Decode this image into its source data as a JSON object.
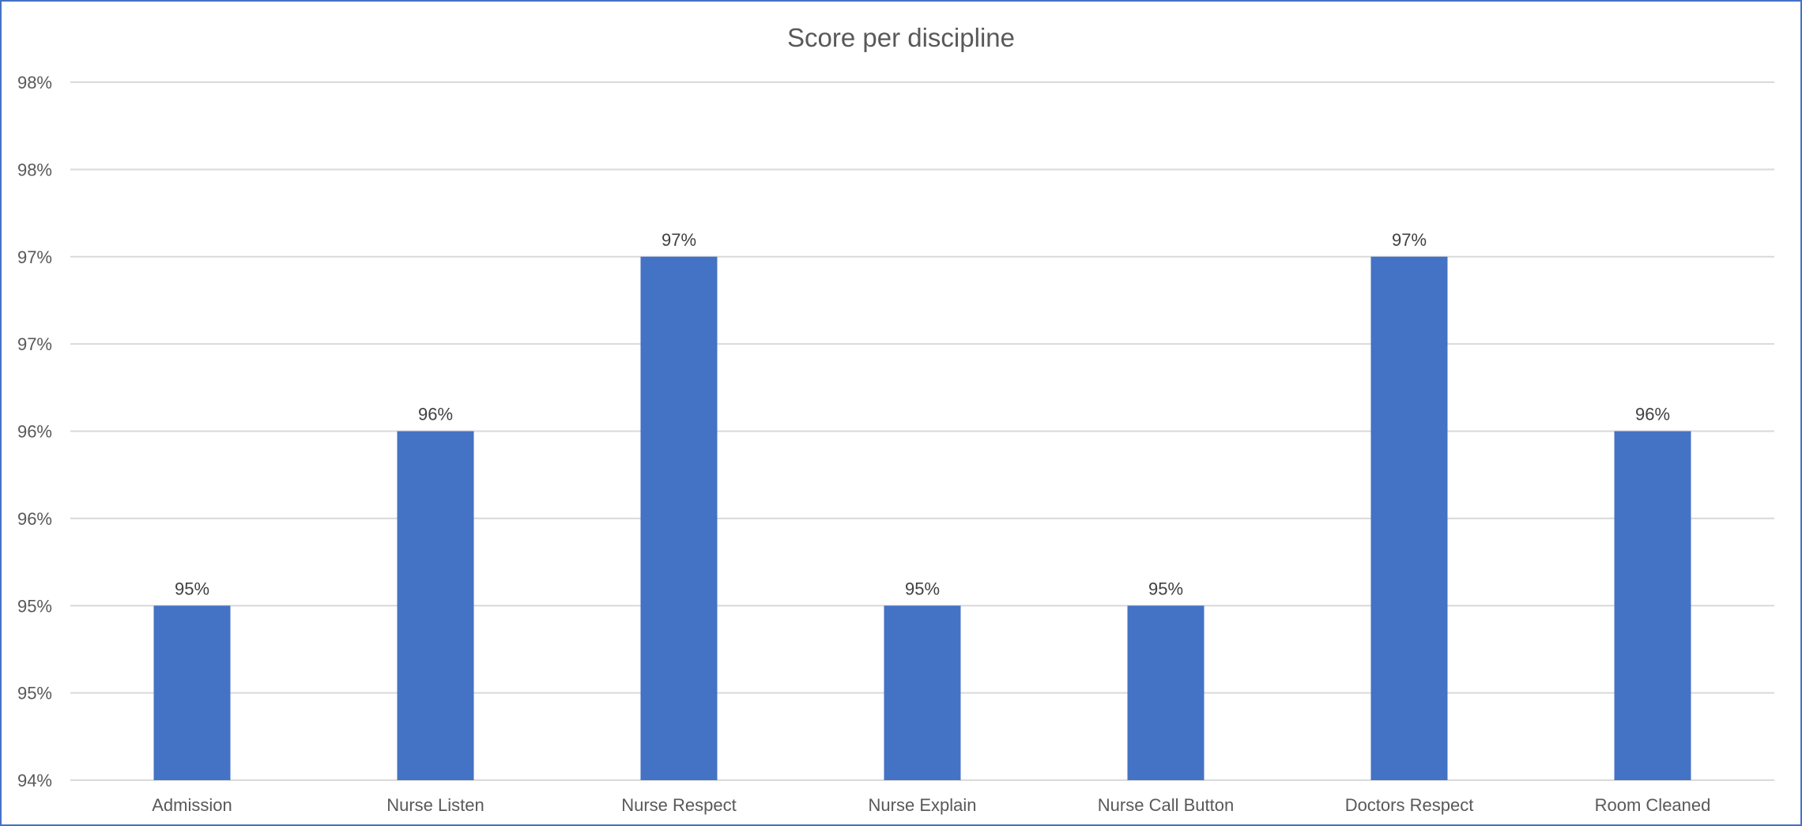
{
  "chart_data": {
    "type": "bar",
    "title": "Score per discipline",
    "categories": [
      "Admission",
      "Nurse Listen",
      "Nurse Respect",
      "Nurse Explain",
      "Nurse Call Button",
      "Doctors Respect",
      "Room Cleaned"
    ],
    "series": [
      {
        "values": [
          0.95,
          0.96,
          0.97,
          0.95,
          0.95,
          0.97,
          0.96
        ],
        "data_labels": [
          "95%",
          "96%",
          "97%",
          "95%",
          "95%",
          "97%",
          "96%"
        ],
        "color": "#4472c4"
      }
    ],
    "ylim": [
      0.94,
      0.98
    ],
    "yticks": [
      0.94,
      0.945,
      0.95,
      0.955,
      0.96,
      0.965,
      0.97,
      0.975,
      0.98
    ],
    "ytick_labels": [
      "94%",
      "95%",
      "95%",
      "96%",
      "96%",
      "97%",
      "97%",
      "98%",
      "98%"
    ],
    "grid": true,
    "legend": "none",
    "xlabel": "",
    "ylabel": ""
  }
}
